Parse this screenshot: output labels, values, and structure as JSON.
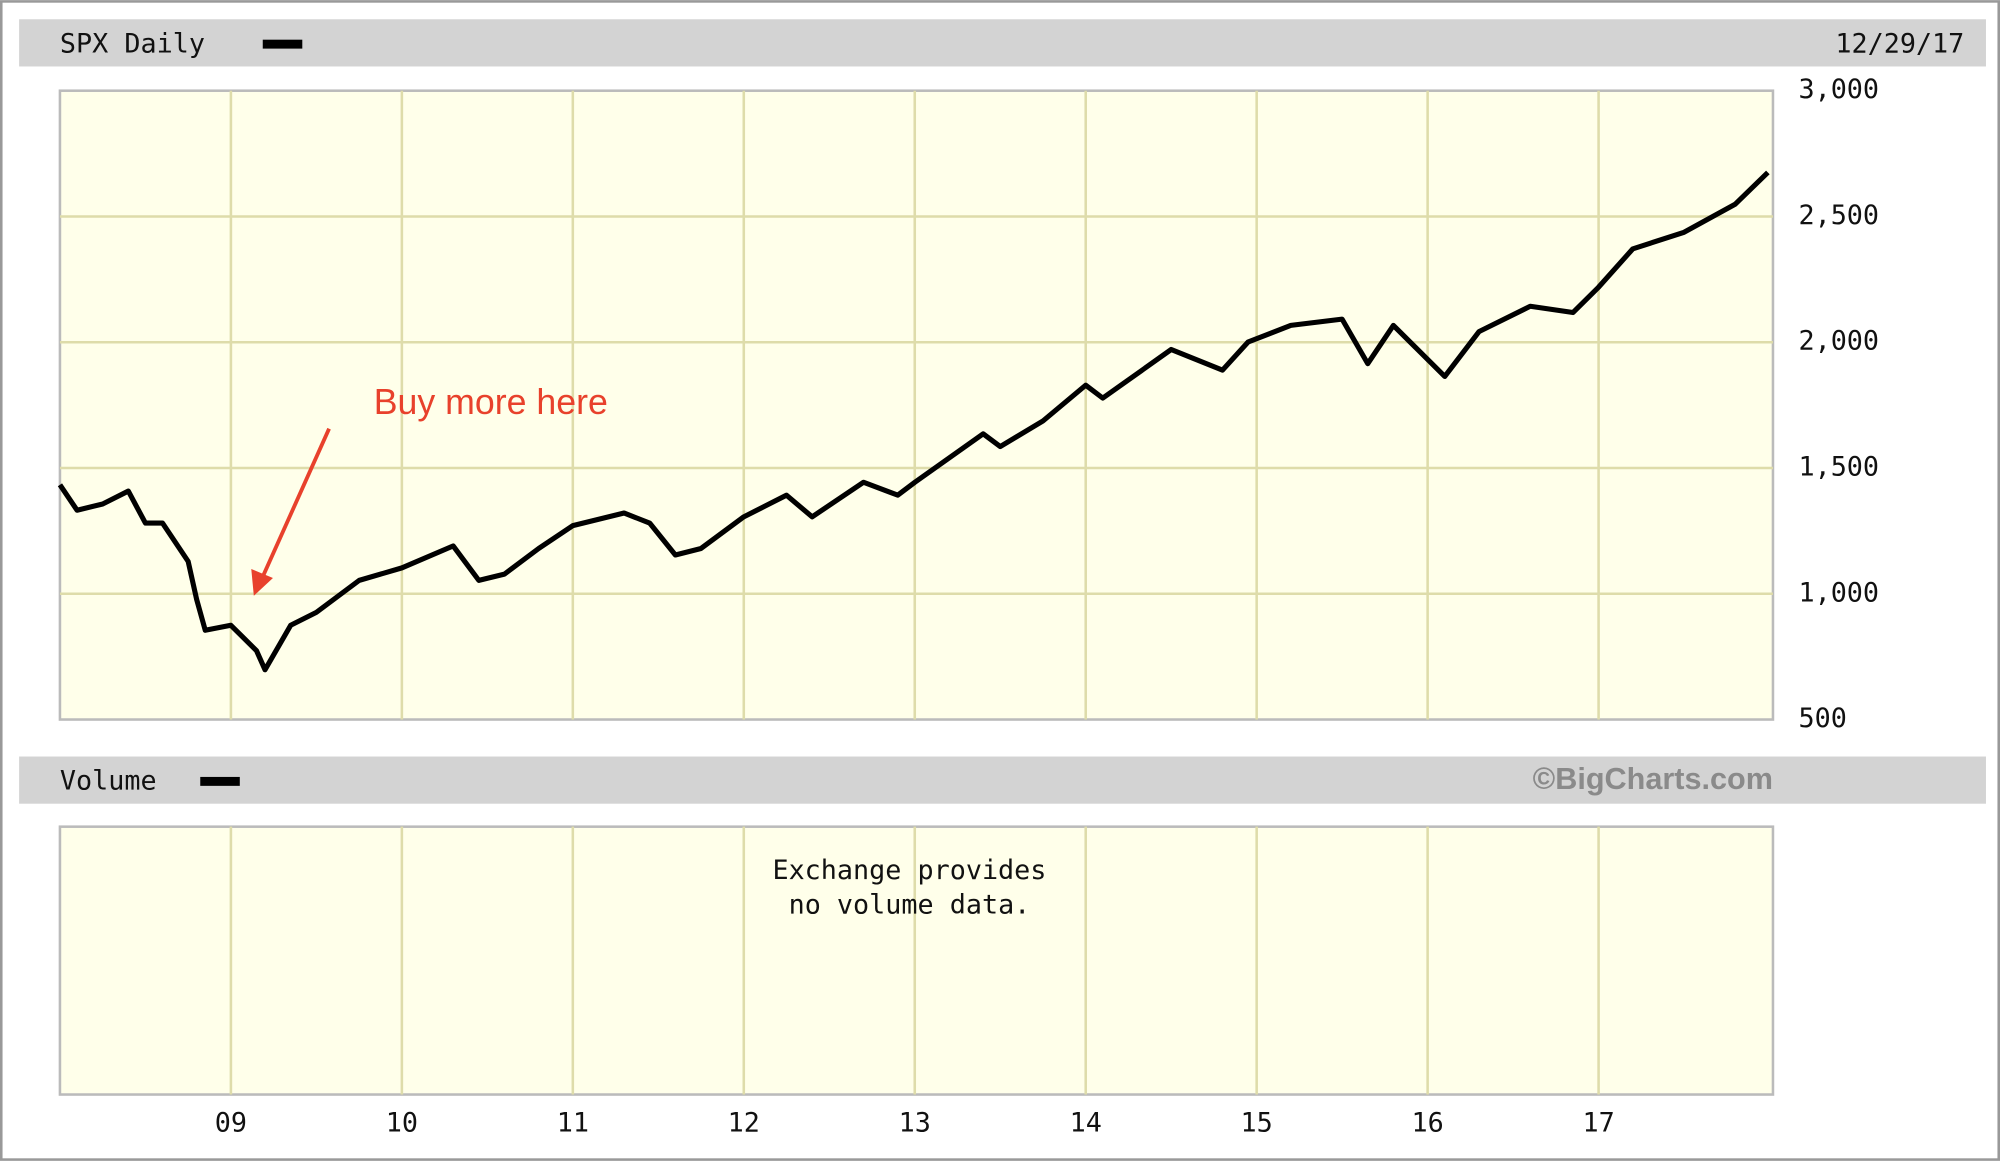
{
  "chart_data": {
    "type": "line",
    "date": "12/29/17",
    "credit": "©BigCharts.com",
    "annotations": [
      {
        "text": "Buy more here"
      }
    ],
    "volume_panel": {
      "title": "Volume",
      "note": [
        "Exchange provides",
        "no volume data."
      ]
    },
    "x": [
      2008.0,
      2008.1,
      2008.25,
      2008.4,
      2008.5,
      2008.6,
      2008.75,
      2008.8,
      2008.85,
      2009.0,
      2009.15,
      2009.2,
      2009.35,
      2009.5,
      2009.75,
      2010.0,
      2010.3,
      2010.45,
      2010.6,
      2010.8,
      2011.0,
      2011.3,
      2011.45,
      2011.6,
      2011.75,
      2012.0,
      2012.25,
      2012.4,
      2012.7,
      2012.9,
      2013.0,
      2013.4,
      2013.5,
      2013.75,
      2014.0,
      2014.1,
      2014.5,
      2014.8,
      2014.95,
      2015.2,
      2015.5,
      2015.65,
      2015.8,
      2016.1,
      2016.3,
      2016.6,
      2016.85,
      2017.0,
      2017.2,
      2017.5,
      2017.8,
      2017.99
    ],
    "series": [
      {
        "name": "SPX Daily",
        "color": "#000000",
        "values": [
          1433,
          1332,
          1357,
          1408,
          1281,
          1281,
          1129,
          977,
          855,
          875,
          774,
          698,
          875,
          926,
          1053,
          1103,
          1190,
          1053,
          1078,
          1180,
          1271,
          1321,
          1281,
          1154,
          1180,
          1306,
          1392,
          1306,
          1443,
          1392,
          1443,
          1636,
          1585,
          1687,
          1829,
          1778,
          1971,
          1889,
          2001,
          2067,
          2092,
          1915,
          2067,
          1864,
          2042,
          2143,
          2118,
          2219,
          2371,
          2437,
          2549,
          2675
        ]
      }
    ],
    "xlim": [
      2008.0,
      2018.02
    ],
    "xticks": [
      {
        "value": 2009,
        "label": "09"
      },
      {
        "value": 2010,
        "label": "10"
      },
      {
        "value": 2011,
        "label": "11"
      },
      {
        "value": 2012,
        "label": "12"
      },
      {
        "value": 2013,
        "label": "13"
      },
      {
        "value": 2014,
        "label": "14"
      },
      {
        "value": 2015,
        "label": "15"
      },
      {
        "value": 2016,
        "label": "16"
      },
      {
        "value": 2017,
        "label": "17"
      }
    ],
    "ylim": [
      500,
      3000
    ],
    "yticks": [
      500,
      {
        "value": 1000,
        "label": "1,000"
      },
      {
        "value": 1500,
        "label": "1,500"
      },
      {
        "value": 2000,
        "label": "2,000"
      },
      {
        "value": 2500,
        "label": "2,500"
      },
      {
        "value": 3000,
        "label": "3,000"
      }
    ],
    "grid": true
  }
}
